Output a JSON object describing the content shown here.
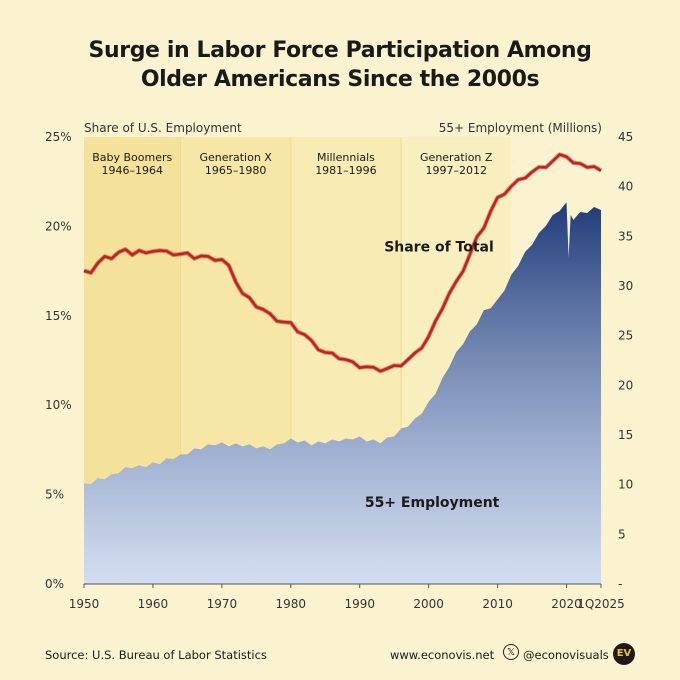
{
  "title_line1": "Surge in Labor Force Participation Among",
  "title_line2": "Older Americans Since the 2000s",
  "left_axis_title": "Share of U.S. Employment",
  "right_axis_title": "55+ Employment (Millions)",
  "footer": {
    "source": "Source: U.S. Bureau of Labor Statistics",
    "website": "www.econovis.net",
    "handle": "@econovisuals",
    "logo_text": "EV",
    "x_logo": "𝕏"
  },
  "colors": {
    "background": "#fbf3cf",
    "share_line": "#c81e1e",
    "employment_top": "#1f3b7a",
    "employment_bottom": "#b9cbe8"
  },
  "chart_data": {
    "type": "area",
    "xlim": [
      1950,
      2025
    ],
    "x_tick_labels": [
      {
        "x": 1950,
        "label": "1950"
      },
      {
        "x": 1960,
        "label": "1960"
      },
      {
        "x": 1970,
        "label": "1970"
      },
      {
        "x": 1980,
        "label": "1980"
      },
      {
        "x": 1990,
        "label": "1990"
      },
      {
        "x": 2000,
        "label": "2000"
      },
      {
        "x": 2010,
        "label": "2010"
      },
      {
        "x": 2020,
        "label": "2020"
      },
      {
        "x": 2025,
        "label": "1Q2025"
      }
    ],
    "left_axis": {
      "ylim": [
        0,
        25
      ],
      "ticks": [
        "0%",
        "5%",
        "10%",
        "15%",
        "20%",
        "25%"
      ]
    },
    "right_axis": {
      "ylim": [
        0,
        45
      ],
      "ticks": [
        "-",
        "5",
        "10",
        "15",
        "20",
        "25",
        "30",
        "35",
        "40",
        "45"
      ]
    },
    "generations": [
      {
        "name": "Baby Boomers",
        "years": "1946–1964",
        "start": 1950,
        "end": 1964,
        "shade": "#f4e29a"
      },
      {
        "name": "Generation X",
        "years": "1965–1980",
        "start": 1964,
        "end": 1980,
        "shade": "#f6e7a6"
      },
      {
        "name": "Millennials",
        "years": "1981–1996",
        "start": 1980,
        "end": 1996,
        "shade": "#f8ebb3"
      },
      {
        "name": "Generation Z",
        "years": "1997–2012",
        "start": 1996,
        "end": 2012,
        "shade": "#f9eebe"
      }
    ],
    "series": [
      {
        "name": "Share of Total",
        "axis": "left",
        "x": [
          1950,
          1951,
          1952,
          1953,
          1954,
          1955,
          1956,
          1957,
          1958,
          1959,
          1960,
          1961,
          1962,
          1963,
          1964,
          1965,
          1966,
          1967,
          1968,
          1969,
          1970,
          1971,
          1972,
          1973,
          1974,
          1975,
          1976,
          1977,
          1978,
          1979,
          1980,
          1981,
          1982,
          1983,
          1984,
          1985,
          1986,
          1987,
          1988,
          1989,
          1990,
          1991,
          1992,
          1993,
          1994,
          1995,
          1996,
          1997,
          1998,
          1999,
          2000,
          2001,
          2002,
          2003,
          2004,
          2005,
          2006,
          2007,
          2008,
          2009,
          2010,
          2011,
          2012,
          2013,
          2014,
          2015,
          2016,
          2017,
          2018,
          2019,
          2020,
          2021,
          2022,
          2023,
          2024,
          2025
        ],
        "values": [
          17.4,
          17.5,
          17.9,
          18.2,
          18.3,
          18.5,
          18.6,
          18.5,
          18.6,
          18.4,
          18.7,
          18.6,
          18.5,
          18.5,
          18.4,
          18.4,
          18.3,
          18.3,
          18.2,
          18.2,
          18.1,
          17.7,
          17.0,
          16.2,
          15.9,
          15.6,
          15.3,
          15.0,
          14.8,
          14.6,
          14.5,
          14.2,
          13.9,
          13.5,
          13.2,
          12.9,
          12.8,
          12.7,
          12.5,
          12.3,
          12.2,
          12.1,
          12.0,
          12.0,
          12.0,
          12.1,
          12.3,
          12.5,
          12.8,
          13.3,
          13.8,
          14.6,
          15.5,
          16.2,
          16.8,
          17.6,
          18.4,
          19.3,
          20.0,
          20.8,
          21.5,
          21.9,
          22.2,
          22.5,
          22.8,
          23.0,
          23.2,
          23.4,
          23.6,
          23.9,
          24.0,
          23.5,
          23.4,
          23.4,
          23.3,
          23.0
        ]
      },
      {
        "name": "55+ Employment",
        "axis": "right",
        "x": [
          1950,
          1951,
          1952,
          1953,
          1954,
          1955,
          1956,
          1957,
          1958,
          1959,
          1960,
          1961,
          1962,
          1963,
          1964,
          1965,
          1966,
          1967,
          1968,
          1969,
          1970,
          1971,
          1972,
          1973,
          1974,
          1975,
          1976,
          1977,
          1978,
          1979,
          1980,
          1981,
          1982,
          1983,
          1984,
          1985,
          1986,
          1987,
          1988,
          1989,
          1990,
          1991,
          1992,
          1993,
          1994,
          1995,
          1996,
          1997,
          1998,
          1999,
          2000,
          2001,
          2002,
          2003,
          2004,
          2005,
          2006,
          2007,
          2008,
          2009,
          2010,
          2011,
          2012,
          2013,
          2014,
          2015,
          2016,
          2017,
          2018,
          2019,
          2020,
          2020.3,
          2020.6,
          2021,
          2022,
          2023,
          2024,
          2025
        ],
        "values": [
          10.0,
          10.2,
          10.5,
          10.7,
          10.9,
          11.3,
          11.6,
          11.8,
          11.8,
          11.9,
          12.1,
          12.2,
          12.5,
          12.7,
          12.9,
          13.2,
          13.5,
          13.7,
          13.9,
          14.1,
          14.1,
          14.0,
          14.0,
          14.0,
          13.9,
          13.8,
          13.7,
          13.7,
          13.9,
          14.3,
          14.5,
          14.4,
          14.3,
          14.1,
          14.2,
          14.3,
          14.4,
          14.5,
          14.5,
          14.7,
          14.7,
          14.5,
          14.4,
          14.3,
          14.6,
          15.0,
          15.5,
          16.0,
          16.5,
          17.3,
          18.2,
          19.3,
          20.6,
          22.0,
          23.2,
          24.3,
          25.3,
          26.3,
          27.4,
          27.9,
          28.5,
          29.7,
          31.0,
          32.2,
          33.3,
          34.3,
          35.2,
          36.2,
          37.0,
          37.7,
          38.3,
          33.0,
          37.0,
          36.8,
          37.3,
          37.5,
          37.8,
          37.8
        ]
      }
    ],
    "annotations": [
      {
        "text": "Share of Total",
        "x": 2001.5,
        "y_left": 18.6
      },
      {
        "text": "55+ Employment",
        "x": 2000.5,
        "y_left": 4.3
      }
    ]
  }
}
